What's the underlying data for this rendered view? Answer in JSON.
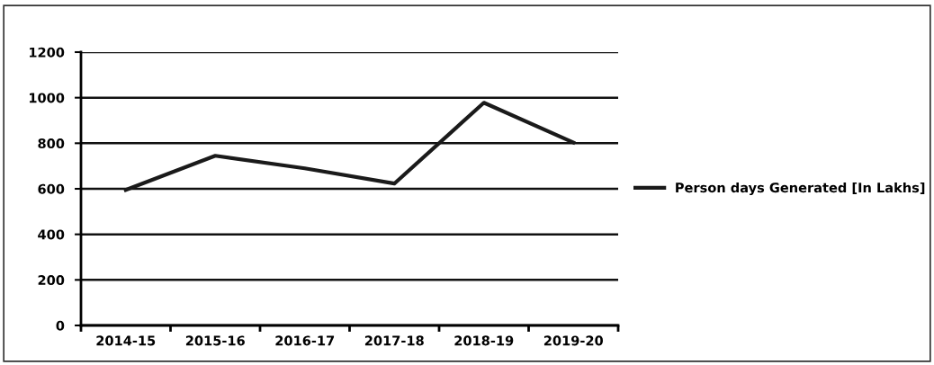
{
  "chart_data": {
    "type": "line",
    "categories": [
      "2014-15",
      "2015-16",
      "2016-17",
      "2017-18",
      "2018-19",
      "2019-20"
    ],
    "series": [
      {
        "name": "Person days Generated [In Lakhs]",
        "color": "#1a1a1a",
        "values": [
          595,
          745,
          690,
          623,
          978,
          803
        ]
      }
    ],
    "ylim": [
      0,
      1200
    ],
    "yticks": [
      0,
      200,
      400,
      600,
      800,
      1000,
      1200
    ],
    "grid": "y",
    "legend": "right",
    "marker": "none",
    "line_style": "solid"
  }
}
